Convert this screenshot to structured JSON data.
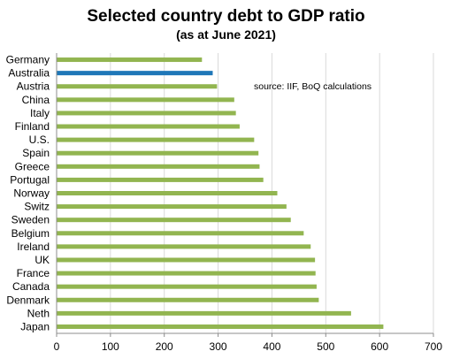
{
  "chart_data": {
    "type": "bar",
    "orientation": "horizontal",
    "title": "Selected country debt to GDP ratio",
    "subtitle": "(as at June 2021)",
    "annotation": "source:  IIF, BoQ calculations",
    "categories": [
      "Germany",
      "Australia",
      "Austria",
      "China",
      "Italy",
      "Finland",
      "U.S.",
      "Spain",
      "Greece",
      "Portugal",
      "Norway",
      "Switz",
      "Sweden",
      "Belgium",
      "Ireland",
      "UK",
      "France",
      "Canada",
      "Denmark",
      "Neth",
      "Japan"
    ],
    "values": [
      270,
      290,
      298,
      330,
      333,
      340,
      367,
      375,
      377,
      384,
      410,
      427,
      435,
      459,
      472,
      480,
      481,
      483,
      487,
      547,
      607
    ],
    "highlight_category": "Australia",
    "colors": {
      "default": "#92b550",
      "highlight": "#1f77b8",
      "grid": "#d9d9d9"
    },
    "xlim": [
      0,
      700
    ],
    "xticks": [
      0,
      100,
      200,
      300,
      400,
      500,
      600,
      700
    ],
    "grid": "vertical"
  }
}
